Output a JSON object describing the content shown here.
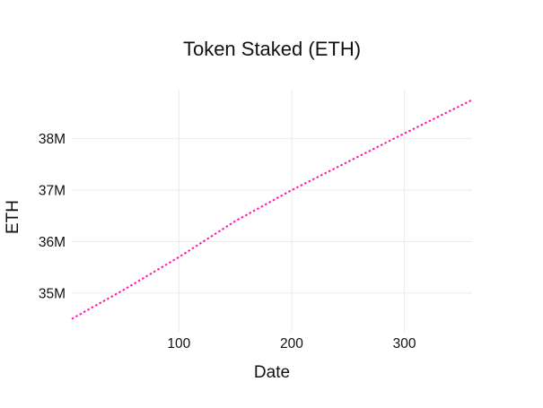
{
  "chart_data": {
    "type": "line",
    "title": "Token Staked (ETH)",
    "xlabel": "Date",
    "ylabel": "ETH",
    "xlim": [
      5,
      360
    ],
    "ylim": [
      34.25,
      38.95
    ],
    "x_ticks": [
      {
        "value": 100,
        "label": "100"
      },
      {
        "value": 200,
        "label": "200"
      },
      {
        "value": 300,
        "label": "300"
      }
    ],
    "y_ticks": [
      {
        "value": 35,
        "label": "35M"
      },
      {
        "value": 36,
        "label": "36M"
      },
      {
        "value": 37,
        "label": "37M"
      },
      {
        "value": 38,
        "label": "38M"
      }
    ],
    "y_unit": "millions of ETH",
    "grid": true,
    "legend": "none",
    "series": [
      {
        "color": "#ff1aaa",
        "line_style": "dotted",
        "x": [
          5,
          50,
          100,
          150,
          200,
          250,
          300,
          360
        ],
        "y": [
          34.5,
          35.05,
          35.7,
          36.4,
          37.0,
          37.55,
          38.1,
          38.75
        ]
      }
    ]
  }
}
